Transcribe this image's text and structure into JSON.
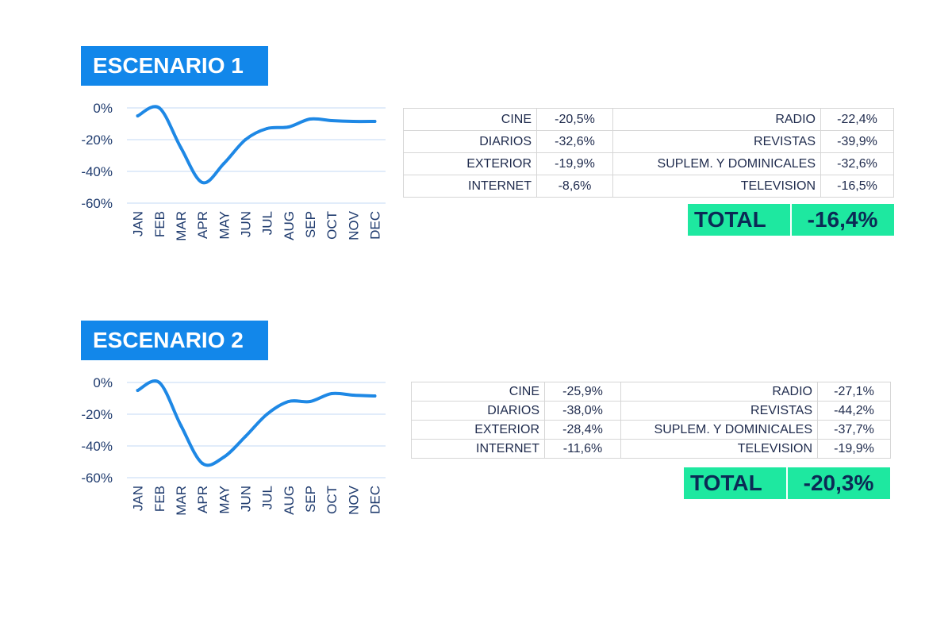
{
  "colors": {
    "badge": "#1287ea",
    "line": "#1e88e5",
    "gridline": "#cfe0f7",
    "total_bg": "#1ee8a0"
  },
  "scenarios": [
    {
      "title": "ESCENARIO 1",
      "rows": [
        {
          "left_label": "CINE",
          "left_value": "-20,5%",
          "right_label": "RADIO",
          "right_value": "-22,4%"
        },
        {
          "left_label": "DIARIOS",
          "left_value": "-32,6%",
          "right_label": "REVISTAS",
          "right_value": "-39,9%"
        },
        {
          "left_label": "EXTERIOR",
          "left_value": "-19,9%",
          "right_label": "SUPLEM. Y DOMINICALES",
          "right_value": "-32,6%"
        },
        {
          "left_label": "INTERNET",
          "left_value": "-8,6%",
          "right_label": "TELEVISION",
          "right_value": "-16,5%"
        }
      ],
      "total_label": "TOTAL",
      "total_value": "-16,4%"
    },
    {
      "title": "ESCENARIO 2",
      "rows": [
        {
          "left_label": "CINE",
          "left_value": "-25,9%",
          "right_label": "RADIO",
          "right_value": "-27,1%"
        },
        {
          "left_label": "DIARIOS",
          "left_value": "-38,0%",
          "right_label": "REVISTAS",
          "right_value": "-44,2%"
        },
        {
          "left_label": "EXTERIOR",
          "left_value": "-28,4%",
          "right_label": "SUPLEM. Y DOMINICALES",
          "right_value": "-37,7%"
        },
        {
          "left_label": "INTERNET",
          "left_value": "-11,6%",
          "right_label": "TELEVISION",
          "right_value": "-19,9%"
        }
      ],
      "total_label": "TOTAL",
      "total_value": "-20,3%"
    }
  ],
  "chart_data": [
    {
      "type": "line",
      "title": "",
      "xlabel": "",
      "ylabel": "",
      "categories": [
        "JAN",
        "FEB",
        "MAR",
        "APR",
        "MAY",
        "JUN",
        "JUL",
        "AUG",
        "SEP",
        "OCT",
        "NOV",
        "DEC"
      ],
      "series": [
        {
          "values": [
            -5,
            0,
            -25,
            -47,
            -35,
            -20,
            -13,
            -12,
            -7,
            -8,
            -8.5,
            -8.5
          ]
        }
      ],
      "yticks": [
        0,
        -20,
        -40,
        -60
      ],
      "ytick_labels": [
        "0%",
        "-20%",
        "-40%",
        "-60%"
      ],
      "ylim": [
        -60,
        0
      ],
      "grid": true,
      "legend": false
    },
    {
      "type": "line",
      "title": "",
      "xlabel": "",
      "ylabel": "",
      "categories": [
        "JAN",
        "FEB",
        "MAR",
        "APR",
        "MAY",
        "JUN",
        "JUL",
        "AUG",
        "SEP",
        "OCT",
        "NOV",
        "DEC"
      ],
      "series": [
        {
          "values": [
            -5,
            0,
            -27,
            -51,
            -47,
            -34,
            -20,
            -12,
            -12,
            -7,
            -8,
            -8.5
          ]
        }
      ],
      "yticks": [
        0,
        -20,
        -40,
        -60
      ],
      "ytick_labels": [
        "0%",
        "-20%",
        "-40%",
        "-60%"
      ],
      "ylim": [
        -60,
        0
      ],
      "grid": true,
      "legend": false
    }
  ]
}
